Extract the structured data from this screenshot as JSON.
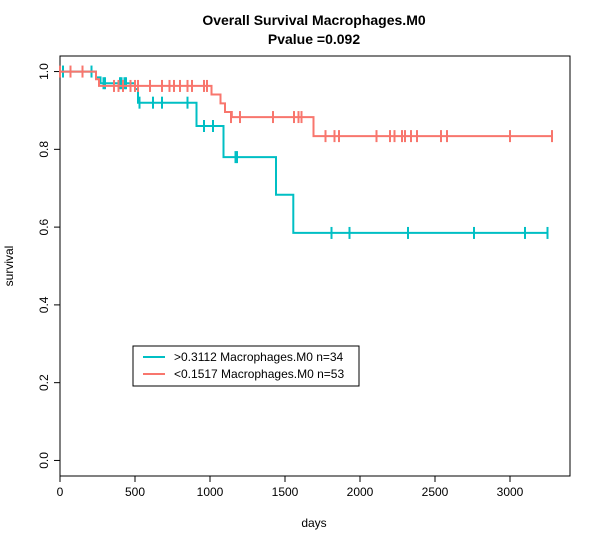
{
  "chart_data": {
    "type": "line",
    "title": "Overall Survival Macrophages.M0",
    "subtitle": "Pvalue =0.092",
    "xlabel": "days",
    "ylabel": "survival",
    "xlim": [
      0,
      3400
    ],
    "ylim": [
      -0.04,
      1.04
    ],
    "x_ticks": [
      0,
      500,
      1000,
      1500,
      2000,
      2500,
      3000
    ],
    "y_ticks": [
      0.0,
      0.2,
      0.4,
      0.6,
      0.8,
      1.0
    ],
    "y_tick_labels": [
      "0.0",
      "0.2",
      "0.4",
      "0.6",
      "0.8",
      "1.0"
    ],
    "grid": false,
    "legend_position": "bottom-left",
    "series": [
      {
        "name": ">0.3112 Macrophages.M0 n=34",
        "color": "#00BFC4",
        "steps": [
          [
            0,
            1.0
          ],
          [
            200,
            1.0
          ],
          [
            240,
            0.985
          ],
          [
            270,
            0.97
          ],
          [
            400,
            0.97
          ],
          [
            500,
            0.955
          ],
          [
            520,
            0.92
          ],
          [
            900,
            0.92
          ],
          [
            910,
            0.86
          ],
          [
            1080,
            0.86
          ],
          [
            1090,
            0.78
          ],
          [
            1430,
            0.78
          ],
          [
            1440,
            0.683
          ],
          [
            1550,
            0.683
          ],
          [
            1555,
            0.585
          ],
          [
            3250,
            0.585
          ]
        ],
        "censor": [
          [
            0,
            1.0
          ],
          [
            20,
            1.0
          ],
          [
            210,
            1.0
          ],
          [
            290,
            0.97
          ],
          [
            300,
            0.97
          ],
          [
            400,
            0.97
          ],
          [
            410,
            0.97
          ],
          [
            430,
            0.97
          ],
          [
            440,
            0.97
          ],
          [
            530,
            0.92
          ],
          [
            620,
            0.92
          ],
          [
            680,
            0.92
          ],
          [
            850,
            0.92
          ],
          [
            960,
            0.86
          ],
          [
            1020,
            0.86
          ],
          [
            1170,
            0.78
          ],
          [
            1180,
            0.78
          ],
          [
            1810,
            0.585
          ],
          [
            1930,
            0.585
          ],
          [
            2320,
            0.585
          ],
          [
            2760,
            0.585
          ],
          [
            3100,
            0.585
          ],
          [
            3250,
            0.585
          ]
        ]
      },
      {
        "name": "<0.1517 Macrophages.M0 n=53",
        "color": "#F8766D",
        "steps": [
          [
            0,
            1.0
          ],
          [
            230,
            1.0
          ],
          [
            240,
            0.98
          ],
          [
            250,
            0.98
          ],
          [
            260,
            0.963
          ],
          [
            300,
            0.963
          ],
          [
            330,
            0.963
          ],
          [
            340,
            0.963
          ],
          [
            1000,
            0.963
          ],
          [
            1010,
            0.941
          ],
          [
            1060,
            0.941
          ],
          [
            1070,
            0.918
          ],
          [
            1090,
            0.918
          ],
          [
            1100,
            0.896
          ],
          [
            1140,
            0.896
          ],
          [
            1145,
            0.883
          ],
          [
            1680,
            0.883
          ],
          [
            1690,
            0.834
          ],
          [
            3280,
            0.834
          ]
        ],
        "censor": [
          [
            0,
            1.0
          ],
          [
            70,
            1.0
          ],
          [
            150,
            1.0
          ],
          [
            360,
            0.963
          ],
          [
            390,
            0.963
          ],
          [
            420,
            0.963
          ],
          [
            470,
            0.963
          ],
          [
            500,
            0.963
          ],
          [
            520,
            0.963
          ],
          [
            600,
            0.963
          ],
          [
            680,
            0.963
          ],
          [
            730,
            0.963
          ],
          [
            760,
            0.963
          ],
          [
            800,
            0.963
          ],
          [
            850,
            0.963
          ],
          [
            880,
            0.963
          ],
          [
            960,
            0.963
          ],
          [
            980,
            0.963
          ],
          [
            1140,
            0.883
          ],
          [
            1200,
            0.883
          ],
          [
            1420,
            0.883
          ],
          [
            1560,
            0.883
          ],
          [
            1590,
            0.883
          ],
          [
            1610,
            0.883
          ],
          [
            1770,
            0.834
          ],
          [
            1830,
            0.834
          ],
          [
            1860,
            0.834
          ],
          [
            2110,
            0.834
          ],
          [
            2200,
            0.834
          ],
          [
            2230,
            0.834
          ],
          [
            2280,
            0.834
          ],
          [
            2300,
            0.834
          ],
          [
            2340,
            0.834
          ],
          [
            2380,
            0.834
          ],
          [
            2540,
            0.834
          ],
          [
            2580,
            0.834
          ],
          [
            3000,
            0.834
          ],
          [
            3280,
            0.834
          ]
        ]
      }
    ]
  }
}
